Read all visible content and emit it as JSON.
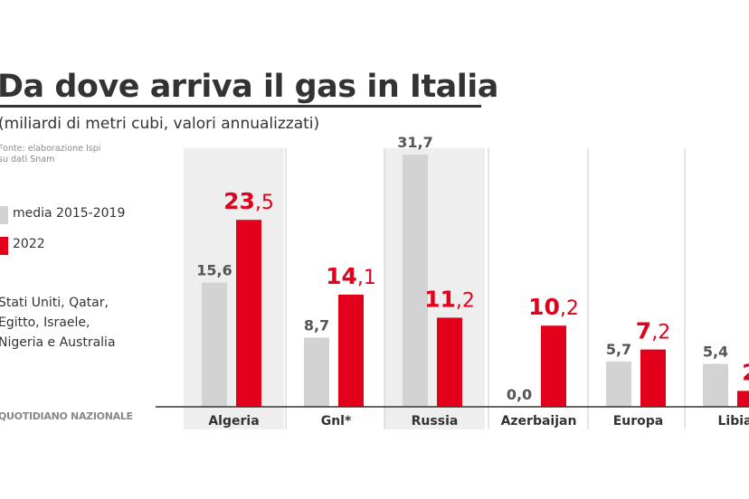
{
  "title": "Da dove arriva il gas in Italia",
  "subtitle": "(miliardi di metri cubi, valori annualizzati)",
  "source": [
    "Fonte: elaborazione Ispi",
    "su dati Snam"
  ],
  "footnote": [
    "Stati Uniti, Qatar,",
    "Egitto, Israele,",
    "Nigeria e Australia"
  ],
  "brand": "QUOTIDIANO NAZIONALE",
  "colors": {
    "avg": "#d3d3d3",
    "y2022": "#e2001a",
    "band": "#eeeeee",
    "text": "#333333",
    "divider": "#cccccc"
  },
  "chart_data": {
    "type": "bar",
    "categories": [
      "Algeria",
      "Gnl*",
      "Russia",
      "Azerbaijan",
      "Europa",
      "Libia"
    ],
    "series": [
      {
        "name": "media 2015-2019",
        "values": [
          15.6,
          8.7,
          31.7,
          0.0,
          5.7,
          5.4
        ]
      },
      {
        "name": "2022",
        "values": [
          23.5,
          14.1,
          11.2,
          10.2,
          7.2,
          2.0
        ]
      }
    ],
    "labels": [
      [
        "15,6",
        "8,7",
        "31,7",
        "0,0",
        "5,7",
        "5,4"
      ],
      [
        "23,5",
        "14,1",
        "11,2",
        "10,2",
        "7,2",
        "2"
      ]
    ],
    "ylim": [
      0,
      32
    ],
    "shaded_categories": [
      "Algeria",
      "Russia"
    ],
    "legend_position": "left",
    "grid": false
  }
}
